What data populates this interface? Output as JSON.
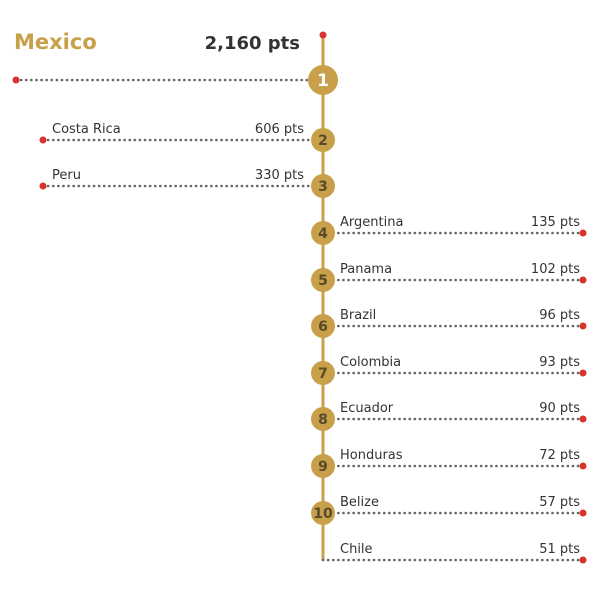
{
  "colors": {
    "accent": "#c9a04a",
    "dot": "#d9322a",
    "dotted_line": "#666666",
    "text": "#333333",
    "badge_text": "#5a4a2a"
  },
  "chart_data": {
    "type": "bar",
    "title": "",
    "xlabel": "",
    "ylabel": "",
    "categories": [
      "Mexico",
      "Costa Rica",
      "Peru",
      "Argentina",
      "Panama",
      "Brazil",
      "Colombia",
      "Ecuador",
      "Honduras",
      "Belize",
      "Chile"
    ],
    "values": [
      2160,
      606,
      330,
      135,
      102,
      96,
      93,
      90,
      72,
      57,
      51
    ],
    "value_labels": [
      "2,160 pts",
      "606 pts",
      "330 pts",
      "135 pts",
      "102 pts",
      "96 pts",
      "93 pts",
      "90 pts",
      "72 pts",
      "57 pts",
      "51 pts"
    ],
    "ranks": [
      "1",
      "2",
      "3",
      "4",
      "5",
      "6",
      "7",
      "8",
      "9",
      "10",
      ""
    ],
    "grid": false,
    "legend": "none"
  }
}
